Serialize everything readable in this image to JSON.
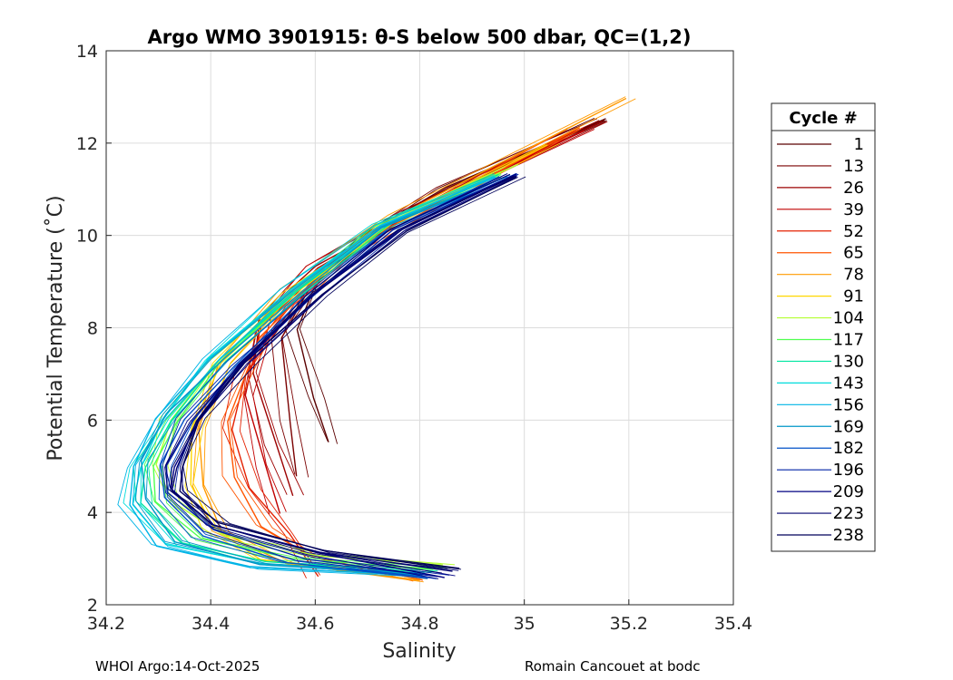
{
  "chart_data": {
    "type": "line",
    "title": "Argo WMO 3901915: θ-S below 500 dbar,  QC=(1,2)",
    "xlabel": "Salinity",
    "ylabel": "Potential Temperature (˚C)",
    "xlim": [
      34.2,
      35.4
    ],
    "ylim": [
      2,
      14
    ],
    "xticks": [
      34.2,
      34.4,
      34.6,
      34.8,
      35,
      35.2,
      35.4
    ],
    "xtick_labels": [
      "34.2",
      "34.4",
      "34.6",
      "34.8",
      "35",
      "35.2",
      "35.4"
    ],
    "yticks": [
      2,
      4,
      6,
      8,
      10,
      12,
      14
    ],
    "ytick_labels": [
      "2",
      "4",
      "6",
      "8",
      "10",
      "12",
      "14"
    ],
    "grid": true,
    "legend_title": "Cycle #",
    "legend_position": "right",
    "series": [
      {
        "name": "1",
        "color": "#5a0000",
        "x": [
          34.63,
          34.6,
          34.56,
          34.6,
          34.7,
          34.85,
          35.15
        ],
        "y": [
          5.5,
          6.5,
          8.0,
          9.0,
          10.0,
          11.0,
          12.5
        ]
      },
      {
        "name": "13",
        "color": "#7a0000",
        "x": [
          34.57,
          34.55,
          34.53,
          34.6,
          34.7,
          34.85,
          35.15
        ],
        "y": [
          4.8,
          6.0,
          7.8,
          9.0,
          10.0,
          11.0,
          12.5
        ]
      },
      {
        "name": "26",
        "color": "#9c0000",
        "x": [
          34.56,
          34.52,
          34.48,
          34.5,
          34.6,
          34.78,
          35.15
        ],
        "y": [
          4.4,
          5.5,
          7.0,
          8.2,
          9.3,
          10.5,
          12.5
        ]
      },
      {
        "name": "39",
        "color": "#c00000",
        "x": [
          34.53,
          34.5,
          34.47,
          34.5,
          34.6,
          34.78,
          35.12
        ],
        "y": [
          4.0,
          5.0,
          6.5,
          8.0,
          9.3,
          10.5,
          12.3
        ]
      },
      {
        "name": "52",
        "color": "#e42000",
        "x": [
          34.6,
          34.55,
          34.48,
          34.44,
          34.46,
          34.55,
          34.7,
          35.1
        ],
        "y": [
          2.6,
          3.5,
          4.5,
          5.8,
          7.0,
          8.5,
          10.0,
          12.3
        ]
      },
      {
        "name": "65",
        "color": "#ff5500",
        "x": [
          34.8,
          34.6,
          34.5,
          34.44,
          34.43,
          34.5,
          34.65,
          35.1
        ],
        "y": [
          2.5,
          3.0,
          3.7,
          4.8,
          6.0,
          7.8,
          9.5,
          12.3
        ]
      },
      {
        "name": "78",
        "color": "#ff9a00",
        "x": [
          34.8,
          34.55,
          34.42,
          34.38,
          34.38,
          34.42,
          34.55,
          34.75,
          35.2
        ],
        "y": [
          2.5,
          2.9,
          3.6,
          4.6,
          5.8,
          7.2,
          8.8,
          10.4,
          13.0
        ]
      },
      {
        "name": "91",
        "color": "#ffd700",
        "x": [
          34.8,
          34.5,
          34.4,
          34.36,
          34.37,
          34.42,
          34.55,
          34.75,
          35.05
        ],
        "y": [
          2.6,
          3.0,
          3.7,
          4.6,
          5.8,
          7.2,
          8.7,
          10.3,
          12.0
        ]
      },
      {
        "name": "104",
        "color": "#b4ff32",
        "x": [
          34.85,
          34.6,
          34.42,
          34.33,
          34.3,
          34.32,
          34.4,
          34.55,
          34.72,
          34.98
        ],
        "y": [
          2.9,
          3.1,
          3.5,
          4.2,
          5.0,
          6.0,
          7.2,
          8.7,
          10.2,
          11.5
        ]
      },
      {
        "name": "117",
        "color": "#50ff50",
        "x": [
          34.84,
          34.55,
          34.38,
          34.3,
          34.29,
          34.33,
          34.42,
          34.57,
          34.73,
          34.95
        ],
        "y": [
          2.8,
          3.0,
          3.4,
          4.2,
          5.0,
          6.0,
          7.3,
          8.8,
          10.2,
          11.3
        ]
      },
      {
        "name": "130",
        "color": "#00e6a0",
        "x": [
          34.82,
          34.5,
          34.35,
          34.27,
          34.27,
          34.32,
          34.42,
          34.57,
          34.73,
          34.95
        ],
        "y": [
          2.7,
          2.9,
          3.3,
          4.2,
          5.0,
          6.0,
          7.3,
          8.8,
          10.2,
          11.3
        ]
      },
      {
        "name": "143",
        "color": "#00dcdc",
        "x": [
          34.8,
          34.5,
          34.32,
          34.25,
          34.26,
          34.31,
          34.4,
          34.55,
          34.72,
          34.95
        ],
        "y": [
          2.65,
          2.85,
          3.3,
          4.2,
          5.0,
          6.0,
          7.3,
          8.8,
          10.2,
          11.3
        ]
      },
      {
        "name": "156",
        "color": "#00b4e6",
        "x": [
          34.8,
          34.48,
          34.3,
          34.24,
          34.25,
          34.3,
          34.4,
          34.55,
          34.72,
          34.95
        ],
        "y": [
          2.6,
          2.8,
          3.3,
          4.2,
          5.0,
          6.0,
          7.3,
          8.8,
          10.2,
          11.3
        ]
      },
      {
        "name": "169",
        "color": "#0096c8",
        "x": [
          34.8,
          34.5,
          34.33,
          34.27,
          34.27,
          34.32,
          34.42,
          34.57,
          34.73,
          34.97
        ],
        "y": [
          2.65,
          2.9,
          3.4,
          4.3,
          5.1,
          6.1,
          7.3,
          8.8,
          10.2,
          11.3
        ]
      },
      {
        "name": "182",
        "color": "#0050c8",
        "x": [
          34.82,
          34.55,
          34.38,
          34.31,
          34.31,
          34.35,
          34.44,
          34.58,
          34.74,
          34.97
        ],
        "y": [
          2.6,
          2.95,
          3.5,
          4.3,
          5.0,
          6.0,
          7.2,
          8.7,
          10.1,
          11.3
        ]
      },
      {
        "name": "196",
        "color": "#0023a5",
        "x": [
          34.84,
          34.58,
          34.4,
          34.32,
          34.32,
          34.36,
          34.45,
          34.6,
          34.75,
          34.98
        ],
        "y": [
          2.65,
          3.0,
          3.6,
          4.4,
          5.0,
          6.0,
          7.2,
          8.7,
          10.1,
          11.3
        ]
      },
      {
        "name": "209",
        "color": "#000082",
        "x": [
          34.85,
          34.6,
          34.4,
          34.33,
          34.33,
          34.37,
          34.46,
          34.6,
          34.76,
          34.98
        ],
        "y": [
          2.6,
          3.1,
          3.7,
          4.5,
          5.0,
          6.0,
          7.2,
          8.7,
          10.1,
          11.3
        ]
      },
      {
        "name": "223",
        "color": "#00006e",
        "x": [
          34.86,
          34.6,
          34.41,
          34.33,
          34.33,
          34.37,
          34.46,
          34.6,
          34.76,
          34.98
        ],
        "y": [
          2.7,
          3.1,
          3.7,
          4.5,
          5.0,
          6.0,
          7.2,
          8.7,
          10.1,
          11.3
        ]
      },
      {
        "name": "238",
        "color": "#00005a",
        "x": [
          34.87,
          34.62,
          34.42,
          34.34,
          34.34,
          34.38,
          34.47,
          34.61,
          34.77,
          34.99
        ],
        "y": [
          2.75,
          3.15,
          3.8,
          4.5,
          5.0,
          6.0,
          7.2,
          8.7,
          10.1,
          11.3
        ]
      }
    ]
  },
  "footer": {
    "left": "WHOI Argo:14-Oct-2025",
    "right": "Romain Cancouet at bodc"
  }
}
